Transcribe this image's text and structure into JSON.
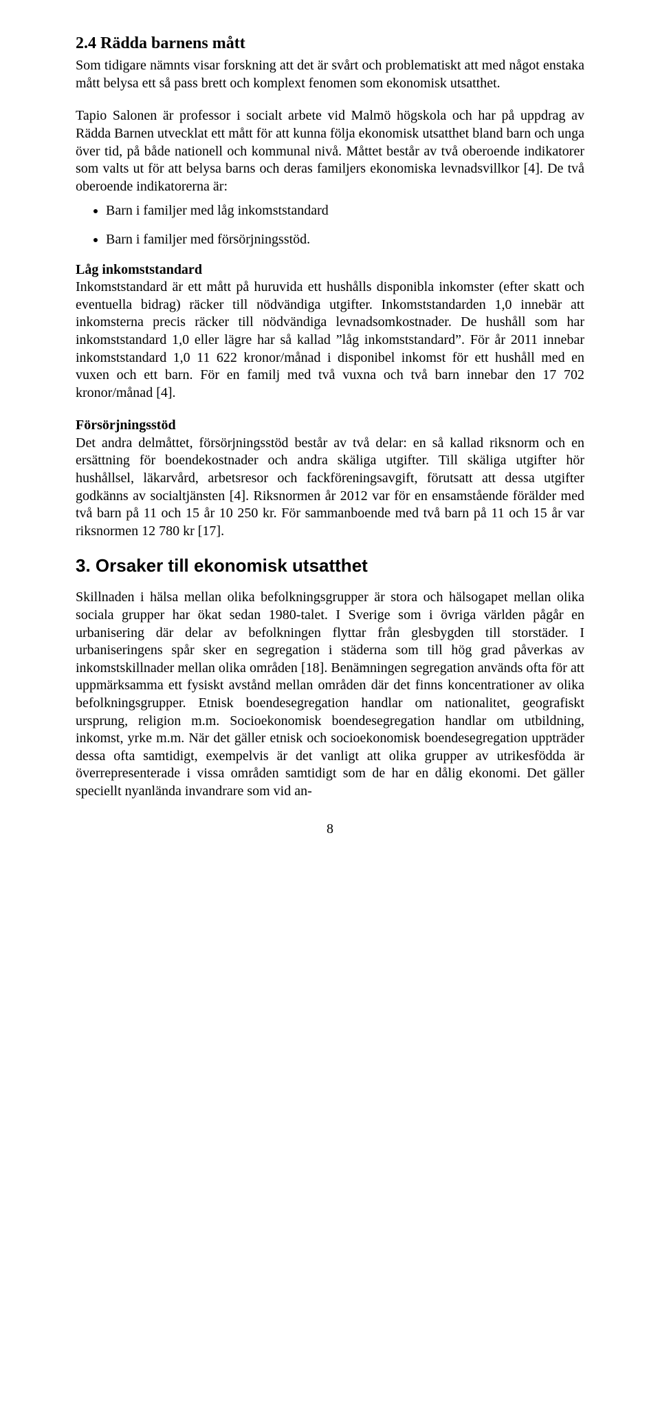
{
  "sec24": {
    "heading": "2.4 Rädda barnens mått",
    "p1": "Som tidigare nämnts visar forskning att det är svårt och problematiskt att med något enstaka mått belysa ett så pass brett och komplext fenomen som ekonomisk utsatthet.",
    "p2": "Tapio Salonen är professor i socialt arbete vid Malmö högskola och har på uppdrag av Rädda Barnen utvecklat ett mått för att kunna följa ekonomisk utsatthet bland barn och unga över tid, på både nationell och kommunal nivå. Måttet består av två oberoende indikatorer som valts ut för att belysa barns och deras familjers ekonomiska levnadsvillkor [4]. De två oberoende indikatorerna är:",
    "bullet1": "Barn i familjer med låg inkomststandard",
    "bullet2": "Barn i familjer med försörjningsstöd.",
    "lag_heading": "Låg inkomststandard",
    "lag_body": "Inkomststandard är ett mått på huruvida ett hushålls disponibla inkomster (efter skatt och eventuella bidrag) räcker till nödvändiga utgifter. Inkomststandarden 1,0 innebär att inkomsterna precis räcker till nödvändiga levnadsomkostnader. De hushåll som har inkomststandard 1,0 eller lägre har så kallad ”låg inkomststandard”. För år 2011 innebar inkomststandard 1,0 11 622 kronor/månad i disponibel inkomst för ett hushåll med en vuxen och ett barn. För en familj med två vuxna och två barn innebar den 17 702 kronor/månad [4].",
    "fors_heading": "Försörjningsstöd",
    "fors_body": "Det andra delmåttet, försörjningsstöd består av två delar: en så kallad riksnorm och en ersättning för boendekostnader och andra skäliga utgifter. Till skäliga utgifter hör hushållsel, läkarvård, arbetsresor och fackföreningsavgift, förutsatt att dessa utgifter godkänns av socialtjänsten [4]. Riksnormen år 2012 var för en ensamstående förälder med två barn på 11 och 15 år 10 250 kr. För sammanboende med två barn på 11 och 15 år var riksnormen 12 780 kr [17]."
  },
  "sec3": {
    "heading": "3. Orsaker till ekonomisk utsatthet",
    "p1": "Skillnaden i hälsa mellan olika befolkningsgrupper är stora och hälsogapet mellan olika sociala grupper har ökat sedan 1980-talet. I Sverige som i övriga världen pågår en urbanisering där delar av befolkningen flyttar från glesbygden till storstäder. I urbaniseringens spår sker en segregation i städerna som till hög grad påverkas av inkomstskillnader mellan olika områden [18]. Benämningen segregation används ofta för att uppmärksamma ett fysiskt avstånd mellan områden där det finns koncentrationer av olika befolkningsgrupper. Etnisk boendesegregation handlar om nationalitet, geografiskt ursprung, religion m.m. Socioekonomisk boendesegregation handlar om utbildning, inkomst, yrke m.m. När det gäller etnisk och socioekonomisk boendesegregation uppträder dessa ofta samtidigt, exempelvis är det vanligt att olika grupper av utrikesfödda är överrepresenterade i vissa områden samtidigt som de har en dålig ekonomi. Det gäller speciellt nyanlända invandrare som vid an-"
  },
  "page_number": "8"
}
